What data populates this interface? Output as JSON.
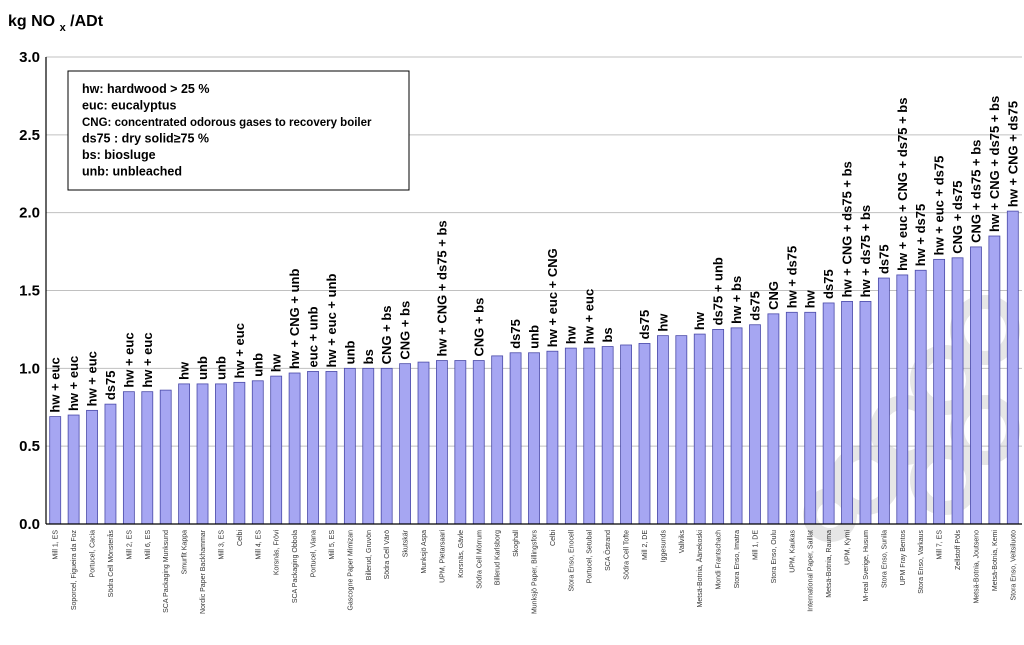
{
  "chart_data": {
    "type": "bar",
    "ylabel": "kg NOx /ADt",
    "ylim": [
      0,
      3.0
    ],
    "yticks": [
      "0.0",
      "0.5",
      "1.0",
      "1.5",
      "2.0",
      "2.5",
      "3.0"
    ],
    "grid": "horizontal",
    "legend": {
      "placement": "top-left",
      "lines": [
        "hw: hardwood > 25 %",
        "euc: eucalyptus",
        "CNG: concentrated odorous gases to recovery boiler",
        "ds75 : dry solid≥75 %",
        "bs: biosluge",
        "unb: unbleached"
      ]
    },
    "colors": {
      "bar_fill": "#a6a6f2",
      "bar_edge": "#4a4aa8",
      "grid": "#c0c0c0"
    },
    "bars": [
      {
        "category": "Mill 1, ES",
        "value": 0.69,
        "note": "hw + euc"
      },
      {
        "category": "Soporcel, Figueira da Foz",
        "value": 0.7,
        "note": "hw + euc"
      },
      {
        "category": "Portucel, Cacia",
        "value": 0.73,
        "note": "hw + euc"
      },
      {
        "category": "Södra Cell Mönsterås",
        "value": 0.77,
        "note": "ds75"
      },
      {
        "category": "Mill 2, ES",
        "value": 0.85,
        "note": "hw + euc"
      },
      {
        "category": "Mill 6, ES",
        "value": 0.85,
        "note": "hw + euc"
      },
      {
        "category": "SCA Packaging Munksund",
        "value": 0.86,
        "note": ""
      },
      {
        "category": "Smurfit Kappa",
        "value": 0.9,
        "note": "hw"
      },
      {
        "category": "Nordic Paper Backhammar",
        "value": 0.9,
        "note": "unb"
      },
      {
        "category": "Mill 3, ES",
        "value": 0.9,
        "note": "unb"
      },
      {
        "category": "Celbi",
        "value": 0.91,
        "note": "hw + euc"
      },
      {
        "category": "Mill 4, ES",
        "value": 0.92,
        "note": "unb"
      },
      {
        "category": "Korsnäs, Frövi",
        "value": 0.95,
        "note": "hw"
      },
      {
        "category": "SCA Packaging Obbola",
        "value": 0.97,
        "note": "hw + CNG + unb"
      },
      {
        "category": "Portucel, Viana",
        "value": 0.98,
        "note": "euc + unb"
      },
      {
        "category": "Mill 5, ES",
        "value": 0.98,
        "note": "hw + euc + unb"
      },
      {
        "category": "Gascogne Paper Mimizan",
        "value": 1.0,
        "note": "unb"
      },
      {
        "category": "Billerud, Gruvön",
        "value": 1.0,
        "note": "bs"
      },
      {
        "category": "Södra Cell Värö",
        "value": 1.0,
        "note": "CNG + bs"
      },
      {
        "category": "Skutskär",
        "value": 1.03,
        "note": "CNG + bs"
      },
      {
        "category": "Munksjö Aspa",
        "value": 1.04,
        "note": ""
      },
      {
        "category": "UPM, Pietarsaari",
        "value": 1.05,
        "note": "hw + CNG + ds75 + bs"
      },
      {
        "category": "Korsnäs, Gävle",
        "value": 1.05,
        "note": ""
      },
      {
        "category": "Södra Cell Mörrum",
        "value": 1.05,
        "note": "CNG + bs"
      },
      {
        "category": "Billerud Karlsborg",
        "value": 1.08,
        "note": ""
      },
      {
        "category": "Skoghall",
        "value": 1.1,
        "note": "ds75"
      },
      {
        "category": "Munksjö Paper, Billingsfors",
        "value": 1.1,
        "note": "unb"
      },
      {
        "category": "Celbi",
        "value": 1.11,
        "note": "hw + euc + CNG"
      },
      {
        "category": "Stora Enso, Enocell",
        "value": 1.13,
        "note": "hw"
      },
      {
        "category": "Portucel, Setubal",
        "value": 1.13,
        "note": "hw + euc"
      },
      {
        "category": "SCA Östrand",
        "value": 1.14,
        "note": "bs"
      },
      {
        "category": "Södra Cell Tofte",
        "value": 1.15,
        "note": ""
      },
      {
        "category": "Mill 2, DE",
        "value": 1.16,
        "note": "ds75"
      },
      {
        "category": "Iggesunds",
        "value": 1.21,
        "note": "hw"
      },
      {
        "category": "Vallviks",
        "value": 1.21,
        "note": ""
      },
      {
        "category": "Metsä-Botnia, Äänekoski",
        "value": 1.22,
        "note": "hw"
      },
      {
        "category": "Mondi Frantschach",
        "value": 1.25,
        "note": "ds75 + unb"
      },
      {
        "category": "Stora Enso, Imatra",
        "value": 1.26,
        "note": "hw + bs"
      },
      {
        "category": "Mill 1, DE",
        "value": 1.28,
        "note": "ds75"
      },
      {
        "category": "Stora Enso, Oulu",
        "value": 1.35,
        "note": "CNG"
      },
      {
        "category": "UPM, Kaukas",
        "value": 1.36,
        "note": "hw + ds75"
      },
      {
        "category": "International Paper, Saillat",
        "value": 1.36,
        "note": "hw"
      },
      {
        "category": "Metsä-Botnia, Rauma",
        "value": 1.42,
        "note": "ds75"
      },
      {
        "category": "UPM, Kymi",
        "value": 1.43,
        "note": "hw + CNG + ds75 + bs"
      },
      {
        "category": "M-real Sverige, Husum",
        "value": 1.43,
        "note": "hw + ds75 + bs"
      },
      {
        "category": "Stora Enso, Sunila",
        "value": 1.58,
        "note": "ds75"
      },
      {
        "category": "UPM Fray Bentos",
        "value": 1.6,
        "note": "hw + euc + CNG + ds75 + bs"
      },
      {
        "category": "Stora Enso, Varkaus",
        "value": 1.63,
        "note": "hw + ds75"
      },
      {
        "category": "Mill 7, ES",
        "value": 1.7,
        "note": "hw + euc + ds75"
      },
      {
        "category": "Zellstoff Pöls",
        "value": 1.71,
        "note": "CNG + ds75"
      },
      {
        "category": "Metsä-Botnia, Joutseno",
        "value": 1.78,
        "note": "CNG + ds75 + bs"
      },
      {
        "category": "Metsä-Botnia, Kemi",
        "value": 1.85,
        "note": "hw + CNG + ds75 + bs"
      },
      {
        "category": "Stora Enso, Veitsiluoto",
        "value": 2.01,
        "note": "hw + CNG + ds75"
      }
    ]
  }
}
